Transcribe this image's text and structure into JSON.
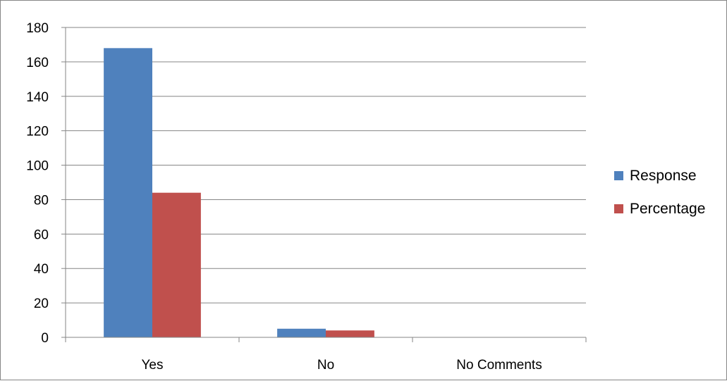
{
  "chart_data": {
    "type": "bar",
    "categories": [
      "Yes",
      "No",
      "No Comments"
    ],
    "series": [
      {
        "name": "Response",
        "values": [
          168,
          5,
          0
        ],
        "color": "#4F81BD"
      },
      {
        "name": "Percentage",
        "values": [
          84,
          4,
          0
        ],
        "color": "#C0504D"
      }
    ],
    "title": "",
    "xlabel": "",
    "ylabel": "",
    "ylim": [
      0,
      180
    ],
    "yticks": [
      "0",
      "20",
      "40",
      "60",
      "80",
      "100",
      "120",
      "140",
      "160",
      "180"
    ],
    "grid": true,
    "legend_position": "right"
  }
}
